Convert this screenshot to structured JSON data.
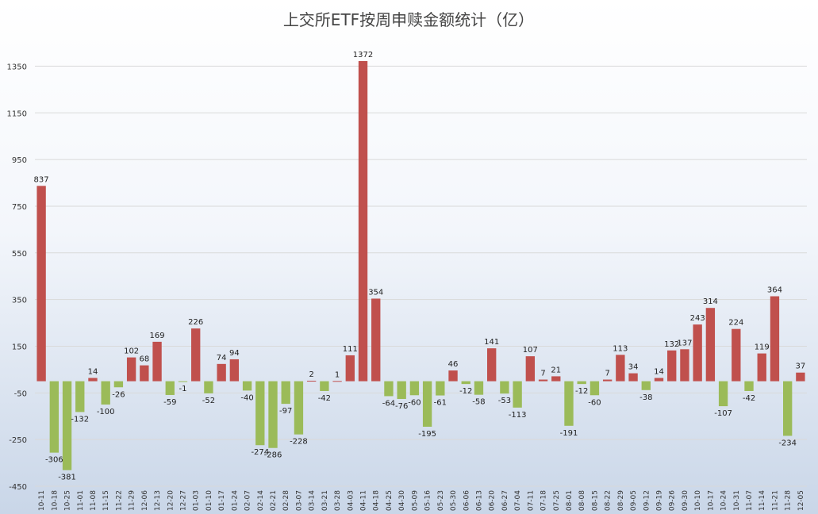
{
  "chart_data": {
    "type": "bar",
    "title": "上交所ETF按周申赎金额统计（亿）",
    "xlabel": "",
    "ylabel": "",
    "ylim": [
      -450,
      1450
    ],
    "yticks": [
      -450,
      -250,
      -50,
      150,
      350,
      550,
      750,
      950,
      1150,
      1350
    ],
    "grid": true,
    "legend": "none",
    "colors": {
      "positive": "#c0504d",
      "negative": "#9bbb59"
    },
    "categories": [
      "10-11",
      "10-18",
      "10-25",
      "11-01",
      "11-08",
      "11-15",
      "11-22",
      "11-29",
      "12-06",
      "12-13",
      "12-20",
      "12-27",
      "01-03",
      "01-10",
      "01-17",
      "01-24",
      "02-07",
      "02-14",
      "02-21",
      "02-28",
      "03-07",
      "03-14",
      "03-21",
      "03-28",
      "04-03",
      "04-11",
      "04-18",
      "04-25",
      "04-30",
      "05-09",
      "05-16",
      "05-23",
      "05-30",
      "06-06",
      "06-13",
      "06-20",
      "06-27",
      "07-04",
      "07-11",
      "07-18",
      "07-25",
      "08-01",
      "08-08",
      "08-15",
      "08-22",
      "08-29",
      "09-05",
      "09-12",
      "09-19",
      "09-26",
      "09-30",
      "10-10",
      "10-17",
      "10-24",
      "10-31",
      "11-07",
      "11-14",
      "11-21",
      "11-28",
      "12-05"
    ],
    "values": [
      837,
      -306,
      -381,
      -132,
      14,
      -100,
      -26,
      102,
      68,
      169,
      -59,
      -1,
      226,
      -52,
      74,
      94,
      -40,
      -274,
      -286,
      -97,
      -228,
      2,
      -42,
      1,
      111,
      1372,
      354,
      -64,
      -76,
      -60,
      -195,
      -61,
      46,
      -12,
      -58,
      141,
      -53,
      -113,
      107,
      7,
      21,
      -191,
      -12,
      -60,
      7,
      113,
      34,
      -38,
      14,
      132,
      137,
      243,
      314,
      -107,
      224,
      -42,
      119,
      364,
      -234,
      37
    ]
  }
}
